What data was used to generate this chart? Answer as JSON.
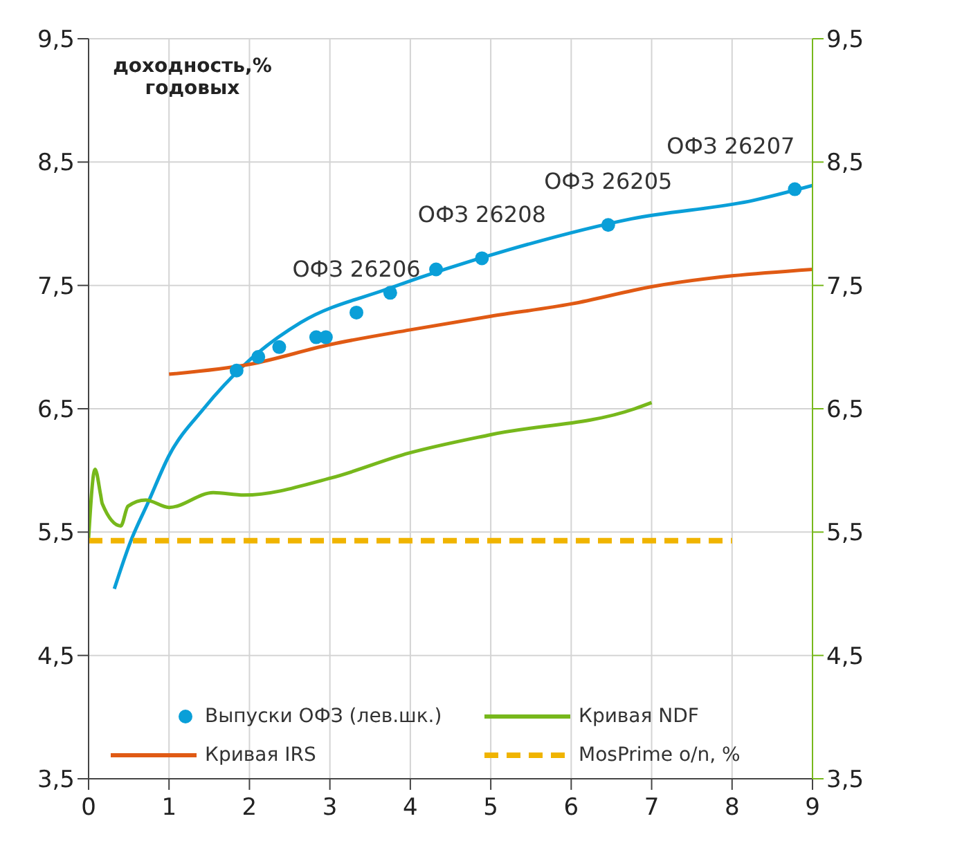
{
  "chart_data": {
    "type": "line",
    "ylabel": "доходность,%\nгодовых",
    "xlim": [
      0,
      9
    ],
    "xticks": [
      0,
      1,
      2,
      3,
      4,
      5,
      6,
      7,
      8,
      9
    ],
    "ylim": [
      3.5,
      9.5
    ],
    "yticks": [
      {
        "value": 3.5,
        "label": "3,5"
      },
      {
        "value": 4.5,
        "label": "4,5"
      },
      {
        "value": 5.5,
        "label": "5,5"
      },
      {
        "value": 6.5,
        "label": "6,5"
      },
      {
        "value": 7.5,
        "label": "7,5"
      },
      {
        "value": 8.5,
        "label": "8,5"
      },
      {
        "value": 9.5,
        "label": "9,5"
      }
    ],
    "y2lim": [
      3.5,
      9.5
    ],
    "y2ticks": [
      {
        "value": 3.5,
        "label": "3,5"
      },
      {
        "value": 4.5,
        "label": "4,5"
      },
      {
        "value": 5.5,
        "label": "5,5"
      },
      {
        "value": 6.5,
        "label": "6,5"
      },
      {
        "value": 7.5,
        "label": "7,5"
      },
      {
        "value": 8.5,
        "label": "8,5"
      },
      {
        "value": 9.5,
        "label": "9,5"
      }
    ],
    "grid": true,
    "legend": "bottom",
    "series": [
      {
        "name": "Выпуски ОФЗ (лев.шк.)",
        "type": "scatter",
        "marker": "circle",
        "color": "#0a9fd8",
        "x": [
          1.84,
          2.11,
          2.37,
          2.83,
          2.95,
          3.33,
          3.75,
          4.32,
          4.89,
          6.46,
          8.78
        ],
        "values": [
          6.81,
          6.92,
          7.0,
          7.08,
          7.08,
          7.28,
          7.44,
          7.63,
          7.72,
          7.99,
          8.28
        ]
      },
      {
        "color": "#0a9fd8",
        "line_style": "solid",
        "x": [
          0.32,
          0.52,
          0.74,
          1.0,
          1.43,
          1.96,
          2.64,
          3.71,
          5.23,
          6.75,
          8.27,
          9.0
        ],
        "values": [
          5.04,
          5.42,
          5.74,
          6.12,
          6.5,
          6.87,
          7.2,
          7.47,
          7.79,
          8.04,
          8.19,
          8.31
        ]
      },
      {
        "name": "Кривая IRS",
        "color": "#e05a14",
        "line_style": "solid",
        "x": [
          1,
          2,
          3,
          4,
          5,
          6,
          7,
          9
        ],
        "values": [
          6.78,
          6.86,
          7.02,
          7.14,
          7.25,
          7.35,
          7.49,
          7.63
        ]
      },
      {
        "name": "Кривая NDF",
        "axis": "y2",
        "color": "#77b81c",
        "line_style": "solid",
        "x": [
          0,
          0.08,
          0.15,
          0.17,
          0.4,
          0.49,
          0.71,
          1.0,
          1.55,
          1.93,
          3.02,
          3.98,
          5.0,
          6.79,
          7.0
        ],
        "values": [
          5.45,
          6.01,
          5.8,
          5.73,
          5.55,
          5.71,
          5.76,
          5.7,
          5.82,
          5.8,
          5.94,
          6.14,
          6.29,
          6.5,
          6.55
        ]
      },
      {
        "name": "MosPrime o/n, %",
        "color": "#f0b400",
        "line_style": "dashed",
        "x": [
          0,
          8
        ],
        "values": [
          5.43,
          5.43
        ]
      }
    ],
    "annotations": [
      {
        "text": "ОФЗ 26206",
        "x": 3.33,
        "y": 7.28
      },
      {
        "text": "ОФЗ 26208",
        "x": 4.89,
        "y": 7.72
      },
      {
        "text": "ОФЗ 26205",
        "x": 6.46,
        "y": 7.99
      },
      {
        "text": "ОФЗ 26207",
        "x": 8.78,
        "y": 8.28
      }
    ]
  }
}
